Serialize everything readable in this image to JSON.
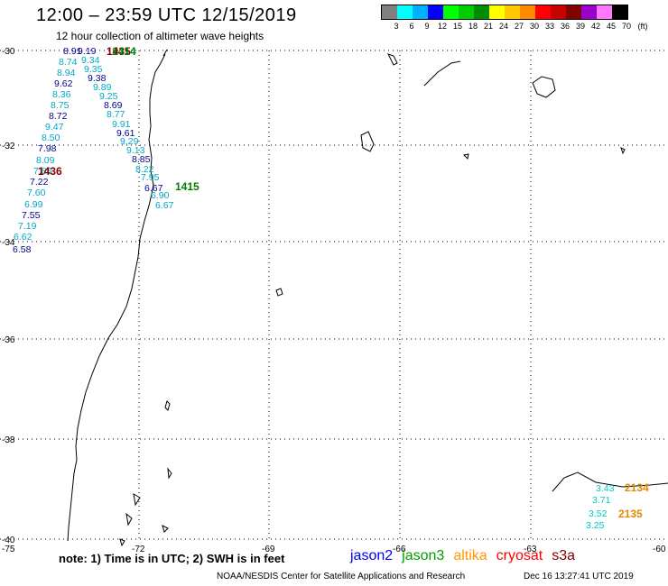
{
  "title": "12:00 – 23:59 UTC 12/15/2019",
  "subtitle": "12 hour collection of altimeter wave heights",
  "legend": {
    "unit_label": "(ft)",
    "colors": [
      "#808080",
      "#00ffff",
      "#00b0ff",
      "#0000ff",
      "#00ff00",
      "#00cc00",
      "#008c00",
      "#ffff00",
      "#ffc800",
      "#ff8c00",
      "#ff0000",
      "#c80000",
      "#820000",
      "#9b00c8",
      "#ff78ff",
      "#000000"
    ],
    "labels": [
      "3",
      "6",
      "9",
      "12",
      "15",
      "18",
      "21",
      "24",
      "27",
      "30",
      "33",
      "36",
      "39",
      "42",
      "45",
      "70"
    ]
  },
  "axes": {
    "lat_labels": [
      "-30",
      "-32",
      "-34",
      "-36",
      "-38",
      "-40"
    ],
    "lon_labels": [
      "-75",
      "-72",
      "-69",
      "-66",
      "-63",
      "-60"
    ]
  },
  "tracks": [
    {
      "name": "cryosat",
      "color": "#800000",
      "time_labels": [
        "1436"
      ],
      "points": [
        {
          "v": "8.91"
        },
        {
          "v": "8.74"
        },
        {
          "v": "8.94"
        },
        {
          "v": "9.62"
        },
        {
          "v": "8.36"
        },
        {
          "v": "8.75"
        },
        {
          "v": "8.72"
        },
        {
          "v": "9.47"
        },
        {
          "v": "8.50"
        },
        {
          "v": "7.98"
        },
        {
          "v": "8.09"
        },
        {
          "v": "7.86"
        },
        {
          "v": "7.22"
        },
        {
          "v": "7.60"
        },
        {
          "v": "6.99"
        },
        {
          "v": "7.55"
        },
        {
          "v": "7.19"
        },
        {
          "v": "6.62"
        },
        {
          "v": "6.58"
        }
      ]
    },
    {
      "name": "jason3",
      "color": "#008000",
      "time_labels": [
        "1415"
      ],
      "points": [
        {
          "v": "9.19"
        },
        {
          "v": "9.34"
        },
        {
          "v": "9.35"
        },
        {
          "v": "9.38"
        },
        {
          "v": "9.89"
        },
        {
          "v": "9.25"
        },
        {
          "v": "8.69"
        },
        {
          "v": "8.77"
        },
        {
          "v": "9.91"
        },
        {
          "v": "9.61"
        },
        {
          "v": "9.29"
        },
        {
          "v": "9.13"
        },
        {
          "v": "8.85"
        },
        {
          "v": "8.22"
        },
        {
          "v": "7.95"
        },
        {
          "v": "6.67"
        },
        {
          "v": "6.90"
        },
        {
          "v": "6.67"
        }
      ]
    },
    {
      "name": "cryosat_top",
      "color": "#800000",
      "time_labels": [
        "1435"
      ],
      "points": []
    },
    {
      "name": "jason3_top",
      "color": "#008000",
      "time_labels": [
        "1414"
      ],
      "points": []
    },
    {
      "name": "altika",
      "color": "#e08800",
      "time_labels": [
        "2134",
        "2135"
      ],
      "points": [
        {
          "v": "3.43"
        },
        {
          "v": "3.71"
        },
        {
          "v": "3.52"
        },
        {
          "v": "3.25"
        }
      ]
    }
  ],
  "note": "note:  1) Time is in UTC;  2) SWH is in feet",
  "satellites": [
    {
      "name": "jason2",
      "color": "#0000ff"
    },
    {
      "name": "jason3",
      "color": "#00a000"
    },
    {
      "name": "altika",
      "color": "#ff9900"
    },
    {
      "name": "cryosat",
      "color": "#ff0000"
    },
    {
      "name": "s3a",
      "color": "#800000"
    }
  ],
  "credit": "NOAA/NESDIS Center for Satellite Applications and Research",
  "timestamp": "Dec 16 13:27:41 UTC 2019"
}
